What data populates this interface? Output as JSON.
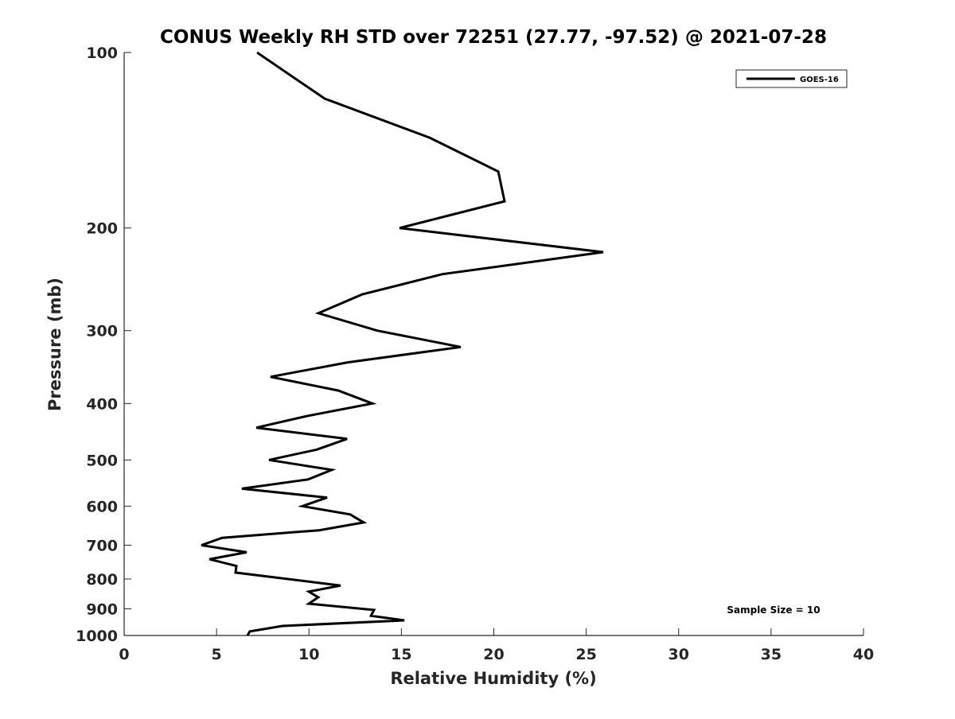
{
  "chart_data": {
    "type": "line",
    "title": "CONUS Weekly RH STD over 72251 (27.77, -97.52) @ 2021-07-28",
    "xlabel": "Relative Humidity (%)",
    "ylabel": "Pressure (mb)",
    "xlim": [
      0,
      40
    ],
    "ylim": [
      100,
      1000
    ],
    "yscale": "log",
    "yreversed": true,
    "grid": false,
    "xticks": [
      "0",
      "5",
      "10",
      "15",
      "20",
      "25",
      "30",
      "35",
      "40"
    ],
    "yticks": [
      "100",
      "200",
      "300",
      "400",
      "500",
      "600",
      "700",
      "800",
      "900",
      "1000"
    ],
    "legend": {
      "placement": "top-right",
      "entries": [
        "GOES-16"
      ]
    },
    "annotation": "Sample Size = 10",
    "series": [
      {
        "name": "GOES-16",
        "color": "#000000",
        "points": [
          [
            7.19,
            100
          ],
          [
            10.85,
            120
          ],
          [
            16.53,
            140
          ],
          [
            20.24,
            160
          ],
          [
            20.58,
            180
          ],
          [
            14.9,
            200
          ],
          [
            25.92,
            220
          ],
          [
            17.22,
            240
          ],
          [
            12.87,
            260
          ],
          [
            10.51,
            280
          ],
          [
            13.69,
            300
          ],
          [
            18.21,
            320
          ],
          [
            12.1,
            340
          ],
          [
            7.92,
            360
          ],
          [
            11.58,
            380
          ],
          [
            13.43,
            400
          ],
          [
            9.95,
            420
          ],
          [
            7.15,
            440
          ],
          [
            12.06,
            460
          ],
          [
            10.42,
            480
          ],
          [
            7.84,
            500
          ],
          [
            11.24,
            520
          ],
          [
            9.95,
            540
          ],
          [
            6.37,
            560
          ],
          [
            10.98,
            580
          ],
          [
            9.64,
            600
          ],
          [
            12.23,
            620
          ],
          [
            12.96,
            640
          ],
          [
            10.55,
            660
          ],
          [
            5.3,
            680
          ],
          [
            4.18,
            700
          ],
          [
            6.63,
            720
          ],
          [
            4.61,
            740
          ],
          [
            6.07,
            760
          ],
          [
            6.03,
            780
          ],
          [
            11.71,
            821
          ],
          [
            9.99,
            841
          ],
          [
            10.5,
            860
          ],
          [
            9.99,
            882
          ],
          [
            13.52,
            904
          ],
          [
            13.35,
            925
          ],
          [
            15.16,
            942
          ],
          [
            8.57,
            963
          ],
          [
            6.8,
            984
          ],
          [
            6.67,
            1000
          ]
        ]
      }
    ]
  }
}
